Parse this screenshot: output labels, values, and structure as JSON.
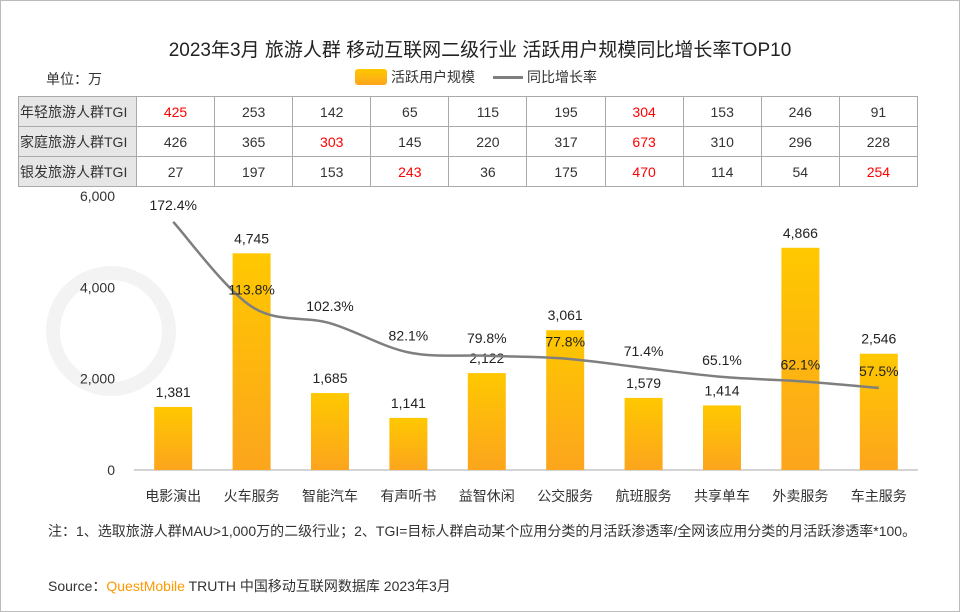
{
  "title": "2023年3月 旅游人群 移动互联网二级行业 活跃用户规模同比增长率TOP10",
  "unit": "单位：万",
  "legend": {
    "bar": "活跃用户规模",
    "line": "同比增长率"
  },
  "colors": {
    "bar_top": "#ffc800",
    "bar_bottom": "#fca51d",
    "line": "#7f7f7f",
    "highlight": "#ff0000"
  },
  "tgi_table": {
    "rows": [
      {
        "label": "年轻旅游人群TGI",
        "values": [
          "425",
          "253",
          "142",
          "65",
          "115",
          "195",
          "304",
          "153",
          "246",
          "91"
        ],
        "highlight": [
          0,
          6
        ]
      },
      {
        "label": "家庭旅游人群TGI",
        "values": [
          "426",
          "365",
          "303",
          "145",
          "220",
          "317",
          "673",
          "310",
          "296",
          "228"
        ],
        "highlight": [
          2,
          6
        ]
      },
      {
        "label": "银发旅游人群TGI",
        "values": [
          "27",
          "197",
          "153",
          "243",
          "36",
          "175",
          "470",
          "114",
          "54",
          "254"
        ],
        "highlight": [
          3,
          6,
          9
        ]
      }
    ]
  },
  "chart_data": {
    "type": "bar",
    "title": "2023年3月 旅游人群 移动互联网二级行业 活跃用户规模同比增长率TOP10",
    "categories": [
      "电影演出",
      "火车服务",
      "智能汽车",
      "有声听书",
      "益智休闲",
      "公交服务",
      "航班服务",
      "共享单车",
      "外卖服务",
      "车主服务"
    ],
    "series": [
      {
        "name": "活跃用户规模",
        "type": "bar",
        "values": [
          1381,
          4745,
          1685,
          1141,
          2122,
          3061,
          1579,
          1414,
          4866,
          2546
        ],
        "labels": [
          "1,381",
          "4,745",
          "1,685",
          "1,141",
          "2,122",
          "3,061",
          "1,579",
          "1,414",
          "4,866",
          "2,546"
        ]
      },
      {
        "name": "同比增长率",
        "type": "line",
        "values": [
          172.4,
          113.8,
          102.3,
          82.1,
          79.8,
          77.8,
          71.4,
          65.1,
          62.1,
          57.5
        ],
        "labels": [
          "172.4%",
          "113.8%",
          "102.3%",
          "82.1%",
          "79.8%",
          "77.8%",
          "71.4%",
          "65.1%",
          "62.1%",
          "57.5%"
        ]
      }
    ],
    "yticks": [
      "0",
      "2,000",
      "4,000",
      "6,000"
    ],
    "ylim": [
      0,
      6000
    ]
  },
  "note": "注：1、选取旅游人群MAU>1,000万的二级行业；2、TGI=目标人群启动某个应用分类的月活跃渗透率/全网该应用分类的月活跃渗透率*100。",
  "source": {
    "prefix": "Source：",
    "brand": "QuestMobile",
    "rest": " TRUTH 中国移动互联网数据库 2023年3月"
  },
  "watermark": "QUEST MOBILE"
}
